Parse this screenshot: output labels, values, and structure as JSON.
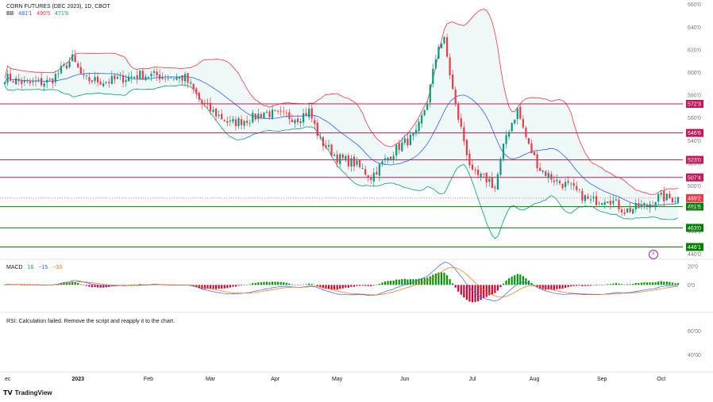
{
  "header": {
    "symbol": "CORN FUTURES (DEC 2023), 1D, CBOT",
    "bb_label": "BB",
    "bb_values": [
      "481'1",
      "490'5",
      "471'6"
    ],
    "macd_label": "MACD",
    "macd_values": [
      "16",
      "−15",
      "−33"
    ],
    "rsi_message": "RSI: Calculation failed. Remove the script and reapply it to the chart."
  },
  "branding": {
    "name": "TradingView"
  },
  "colors": {
    "up": "#089981",
    "down": "#f23645",
    "bb_upper": "#f23645",
    "bb_mid": "#2962ff",
    "bb_lower": "#089981",
    "bb_fill": "#e0f2f1",
    "support": "#008000",
    "resistance": "#c2185b",
    "macd_line": "#2962ff",
    "signal_line": "#ff6d00",
    "hist_up": "#009600",
    "hist_down": "#d5002f",
    "flash": "#9c27b0"
  },
  "chart_data": [
    {
      "type": "candlestick",
      "title": "CORN FUTURES (DEC 2023), 1D, CBOT",
      "y_ticks": [
        "440'0",
        "460'0",
        "480'0",
        "500'0",
        "520'0",
        "540'0",
        "560'0",
        "580'0",
        "600'0",
        "620'0",
        "640'0",
        "660'0"
      ],
      "y_tick_values": [
        440,
        460,
        480,
        500,
        520,
        540,
        560,
        580,
        600,
        620,
        640,
        660
      ],
      "ylim": [
        436,
        664
      ],
      "x_ticks": [
        "ec",
        "2023",
        "Feb",
        "Mar",
        "Apr",
        "May",
        "Jun",
        "Jul",
        "Aug",
        "Sep",
        "Oct"
      ],
      "x_tick_index": [
        0,
        26,
        51,
        73,
        96,
        118,
        142,
        166,
        188,
        212,
        233
      ],
      "n_bars": 240,
      "price_path": [
        [
          0,
          596
        ],
        [
          8,
          590
        ],
        [
          16,
          592
        ],
        [
          24,
          612
        ],
        [
          28,
          594
        ],
        [
          36,
          592
        ],
        [
          48,
          598
        ],
        [
          56,
          597
        ],
        [
          64,
          595
        ],
        [
          66,
          588
        ],
        [
          70,
          572
        ],
        [
          80,
          555
        ],
        [
          88,
          560
        ],
        [
          92,
          565
        ],
        [
          96,
          563
        ],
        [
          104,
          560
        ],
        [
          108,
          566
        ],
        [
          112,
          540
        ],
        [
          118,
          525
        ],
        [
          124,
          520
        ],
        [
          130,
          508
        ],
        [
          134,
          520
        ],
        [
          140,
          535
        ],
        [
          146,
          545
        ],
        [
          150,
          575
        ],
        [
          154,
          625
        ],
        [
          156,
          628
        ],
        [
          160,
          570
        ],
        [
          163,
          540
        ],
        [
          166,
          510
        ],
        [
          172,
          505
        ],
        [
          174,
          498
        ],
        [
          178,
          545
        ],
        [
          182,
          567
        ],
        [
          186,
          535
        ],
        [
          190,
          515
        ],
        [
          196,
          504
        ],
        [
          200,
          500
        ],
        [
          208,
          486
        ],
        [
          214,
          490
        ],
        [
          220,
          478
        ],
        [
          228,
          483
        ],
        [
          232,
          490
        ],
        [
          236,
          489
        ],
        [
          239,
          489
        ]
      ],
      "bb_period": 20,
      "bb_width": 2,
      "horizontal_levels": [
        {
          "label": "572'3",
          "value": 572.375,
          "kind": "resistance"
        },
        {
          "label": "546'6",
          "value": 546.75,
          "kind": "resistance"
        },
        {
          "label": "523'0",
          "value": 523.0,
          "kind": "resistance"
        },
        {
          "label": "507'4",
          "value": 507.5,
          "kind": "resistance"
        },
        {
          "label": "481'6",
          "value": 481.75,
          "kind": "support"
        },
        {
          "label": "463'0",
          "value": 463.0,
          "kind": "support"
        },
        {
          "label": "446'1",
          "value": 446.125,
          "kind": "support"
        }
      ],
      "current_price_label": "489'2",
      "current_price": 489.25
    },
    {
      "type": "bar+line",
      "title": "MACD",
      "y_ticks": [
        "20'0",
        "0'0"
      ],
      "y_tick_values": [
        20,
        0
      ],
      "ylim": [
        -28,
        26
      ],
      "fast": 12,
      "slow": 26,
      "signal": 9
    },
    {
      "type": "line",
      "title": "RSI",
      "y_ticks": [
        "60'00",
        "40'00"
      ],
      "y_tick_values": [
        60,
        40
      ],
      "ylim": [
        28,
        74
      ]
    }
  ]
}
